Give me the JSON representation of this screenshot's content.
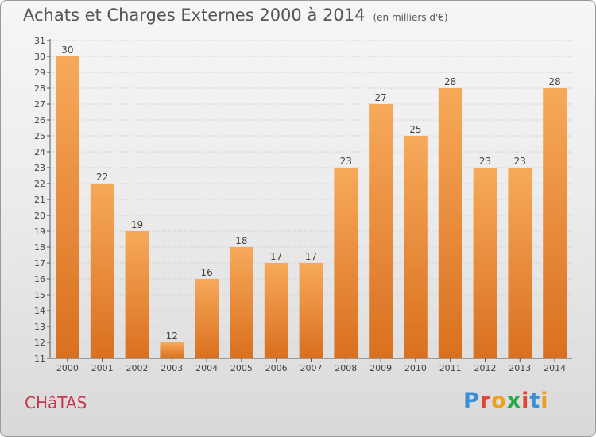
{
  "header": {
    "title": "Achats et Charges Externes 2000 à 2014",
    "unit": "(en milliers d'€)"
  },
  "footer": {
    "commune": "CHâTAS",
    "logo_letters": [
      "P",
      "r",
      "o",
      "x",
      "i",
      "t",
      "i"
    ],
    "logo_colors": [
      "#3b8fd6",
      "#e0462f",
      "#f0a020",
      "#2ba84a",
      "#e0462f",
      "#3b8fd6",
      "#f0a020"
    ]
  },
  "colors": {
    "bar_top": "#f7a95a",
    "bar_bottom": "#d9701f",
    "grid": "#cfcfcf",
    "axis": "#555555"
  },
  "chart_data": {
    "type": "bar",
    "title": "Achats et Charges Externes 2000 à 2014",
    "ylabel": "",
    "xlabel": "",
    "categories": [
      "2000",
      "2001",
      "2002",
      "2003",
      "2004",
      "2005",
      "2006",
      "2007",
      "2008",
      "2009",
      "2010",
      "2011",
      "2012",
      "2013",
      "2014"
    ],
    "values": [
      30,
      22,
      19,
      12,
      16,
      18,
      17,
      17,
      23,
      27,
      25,
      28,
      23,
      23,
      28
    ],
    "ylim": [
      11,
      31
    ],
    "yticks": [
      11,
      12,
      13,
      14,
      15,
      16,
      17,
      18,
      19,
      20,
      21,
      22,
      23,
      24,
      25,
      26,
      27,
      28,
      29,
      30,
      31
    ],
    "grid": true,
    "legend": "none"
  }
}
